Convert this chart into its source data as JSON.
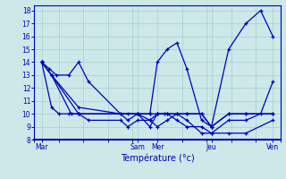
{
  "title": "Température (°c)",
  "background_color": "#cce8e8",
  "grid_color": "#aacccc",
  "line_color": "#0000bb",
  "spine_color": "#0000bb",
  "xlim": [
    0,
    100
  ],
  "ylim": [
    8,
    18.4
  ],
  "yticks": [
    8,
    9,
    10,
    11,
    12,
    13,
    14,
    15,
    16,
    17,
    18
  ],
  "xtick_labels": [
    "Mar",
    "Sam",
    "Mer",
    "Jeu",
    "Ven"
  ],
  "xtick_positions": [
    3,
    42,
    50,
    72,
    97
  ],
  "lines": [
    {
      "x": [
        3,
        7,
        15,
        18,
        42,
        47,
        50,
        53,
        58,
        62,
        68,
        72,
        79,
        86,
        97
      ],
      "y": [
        14,
        13,
        10,
        10,
        10,
        9,
        10,
        10,
        10,
        10,
        10,
        9,
        10,
        10,
        10
      ]
    },
    {
      "x": [
        3,
        7,
        18,
        42,
        47,
        50,
        54,
        58,
        62,
        68,
        72,
        79,
        86,
        97
      ],
      "y": [
        14,
        13,
        10,
        10,
        9.5,
        9,
        9.5,
        10,
        9.5,
        8.5,
        8.5,
        8.5,
        8.5,
        9.5
      ]
    },
    {
      "x": [
        3,
        7,
        18,
        35,
        38,
        42,
        47,
        50,
        54,
        62,
        68,
        72,
        79,
        86,
        97
      ],
      "y": [
        14,
        13,
        10.5,
        10,
        10,
        10,
        10,
        10,
        10,
        10,
        10,
        9,
        10,
        10,
        10
      ]
    },
    {
      "x": [
        3,
        6,
        9,
        14,
        18,
        22,
        35,
        38,
        42,
        47,
        50,
        54,
        58,
        62,
        68,
        72,
        79,
        86,
        92,
        97
      ],
      "y": [
        14,
        13.5,
        13,
        13,
        14,
        12.5,
        10,
        9.5,
        10,
        10,
        14,
        15,
        15.5,
        13.5,
        9.5,
        9,
        15,
        17,
        18,
        16
      ]
    },
    {
      "x": [
        3,
        7,
        10,
        14,
        18,
        22,
        35,
        38,
        42,
        47,
        50,
        54,
        58,
        62,
        68,
        72,
        79,
        86,
        92,
        97
      ],
      "y": [
        14,
        10.5,
        10,
        10,
        10,
        9.5,
        9.5,
        9,
        9.5,
        9.5,
        10,
        10,
        9.5,
        9,
        9,
        8.5,
        9.5,
        9.5,
        10,
        12.5
      ]
    }
  ]
}
